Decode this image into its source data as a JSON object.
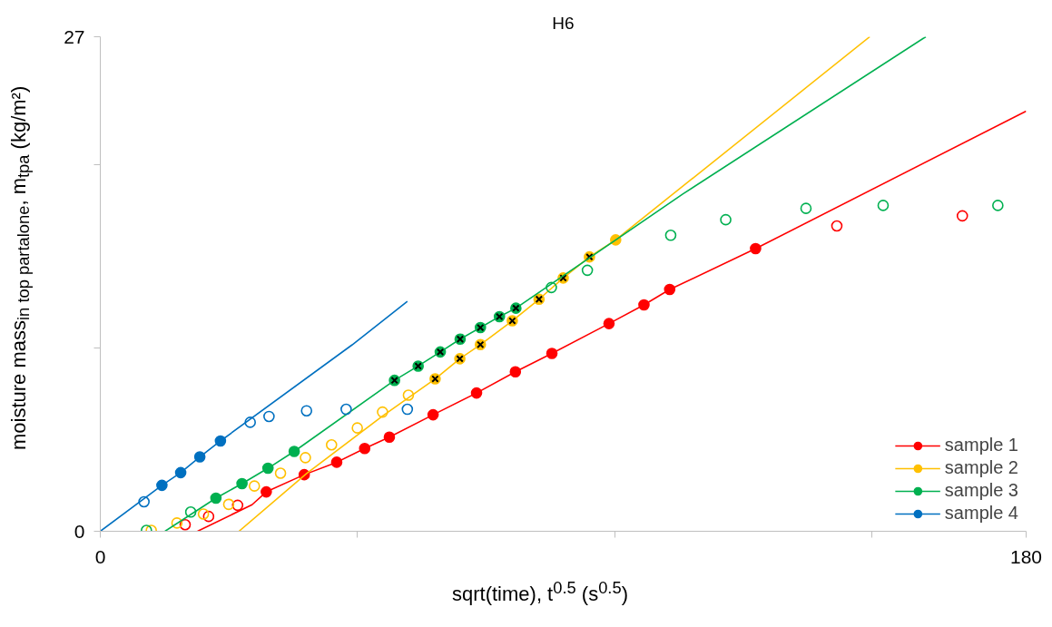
{
  "chart_data": {
    "type": "scatter",
    "title": "H6",
    "xlabel": "sqrt(time), t$^{0.5}$ (s$^{0.5}$)",
    "ylabel": "moisture mass$_{in top partalone}$, m$_{tpa}$ (kg/m²)",
    "xlim": [
      0,
      180
    ],
    "ylim": [
      0,
      27
    ],
    "xticks": [
      0,
      {
        "value": 50,
        "label": null
      },
      {
        "value": 100,
        "label": null
      },
      {
        "value": 150,
        "label": null
      },
      180
    ],
    "yticks": [
      0,
      {
        "value": 10,
        "label": null
      },
      {
        "value": 20,
        "label": null
      },
      27
    ],
    "grid": false,
    "legend": "bottom right",
    "series": [
      {
        "type": "line",
        "name": "sample 1",
        "color": "#ff0000",
        "marker": "circle",
        "x": [
          32.27,
          39.65,
          45.96,
          51.4,
          56.2,
          64.7,
          73.15,
          80.7,
          87.8,
          98.9,
          105.7,
          110.7,
          127.4
        ],
        "values": [
          2.15,
          3.09,
          3.77,
          4.52,
          5.14,
          6.36,
          7.55,
          8.71,
          9.71,
          11.34,
          12.36,
          13.2,
          15.43
        ]
      },
      {
        "type": "line",
        "color": "#ff0000",
        "x": [
          18.9,
          29.5,
          32.27
        ],
        "values": [
          0,
          1.45,
          2.15
        ]
      },
      {
        "type": "line",
        "color": "#ff0000",
        "x": [
          127.4,
          180
        ],
        "values": [
          15.43,
          22.94
        ]
      },
      {
        "color": "#ff0000",
        "marker": "circle",
        "x": [
          16.5,
          21.06,
          26.7,
          143.2,
          167.6
        ],
        "values": [
          0.36,
          0.81,
          1.42,
          16.67,
          17.22
        ]
      },
      {
        "type": "line",
        "name": "sample 2",
        "color": "#ffc000",
        "marker": "circle",
        "x": [
          65.1,
          69.9,
          73.9,
          80.1,
          85.3,
          90.0,
          95.1,
          100.2
        ],
        "values": [
          8.32,
          9.42,
          10.19,
          11.49,
          12.67,
          13.83,
          14.98,
          15.91
        ]
      },
      {
        "type": "line",
        "color": "#ffc000",
        "x": [
          26.96,
          40.1,
          54.9,
          65.1
        ],
        "values": [
          0,
          3.15,
          6.3,
          8.32
        ]
      },
      {
        "type": "line",
        "color": "#ffc000",
        "x": [
          100.2,
          149.6
        ],
        "values": [
          15.91,
          27
        ]
      },
      {
        "color": "#ffc000",
        "marker": "circle",
        "x": [
          9.91,
          14.9,
          20.05,
          24.96,
          29.96,
          35.04,
          39.88,
          44.96,
          49.97,
          54.87,
          59.9
        ],
        "values": [
          0.05,
          0.45,
          0.94,
          1.47,
          2.47,
          3.17,
          4.02,
          4.72,
          5.64,
          6.51,
          7.43
        ]
      },
      {
        "color": "#000000",
        "marker": "cross",
        "x": [
          65.1,
          69.9,
          73.9,
          80.1,
          85.3,
          90.0,
          95.1
        ],
        "values": [
          8.32,
          9.42,
          10.19,
          11.49,
          12.67,
          13.83,
          14.98
        ]
      },
      {
        "type": "line",
        "name": "sample 3",
        "color": "#00b050",
        "marker": "circle",
        "x": [
          22.48,
          27.55,
          32.6,
          37.7,
          57.2,
          61.8,
          66.1,
          69.96,
          73.9,
          77.6,
          80.8
        ],
        "values": [
          1.81,
          2.6,
          3.44,
          4.36,
          8.24,
          9.02,
          9.79,
          10.49,
          11.12,
          11.72,
          12.18
        ]
      },
      {
        "type": "line",
        "color": "#00b050",
        "x": [
          12.57,
          22.48
        ],
        "values": [
          0,
          1.81
        ]
      },
      {
        "type": "line",
        "color": "#00b050",
        "x": [
          80.8,
          113.3,
          160.5
        ],
        "values": [
          12.18,
          18.42,
          27
        ]
      },
      {
        "color": "#00b050",
        "marker": "circle",
        "x": [
          8.97,
          17.58,
          87.7,
          94.7,
          110.9,
          121.6,
          137.2,
          152.2,
          174.5
        ],
        "values": [
          0.05,
          1.05,
          13.31,
          14.25,
          16.16,
          17.01,
          17.63,
          17.79,
          17.79
        ]
      },
      {
        "color": "#000000",
        "marker": "cross",
        "x": [
          57.2,
          61.8,
          66.1,
          69.96,
          73.9,
          77.6,
          80.8
        ],
        "values": [
          8.24,
          9.02,
          9.79,
          10.49,
          11.12,
          11.72,
          12.18
        ]
      },
      {
        "type": "line",
        "name": "sample 4",
        "color": "#0070c0",
        "marker": "circle",
        "x": [
          11.98,
          15.63,
          19.35,
          23.36
        ],
        "values": [
          2.51,
          3.2,
          4.06,
          4.93
        ]
      },
      {
        "type": "line",
        "color": "#0070c0",
        "x": [
          0,
          11.98
        ],
        "values": [
          0,
          2.51
        ]
      },
      {
        "type": "line",
        "color": "#0070c0",
        "x": [
          23.36,
          48.97,
          59.7
        ],
        "values": [
          4.93,
          10.18,
          12.55
        ]
      },
      {
        "color": "#0070c0",
        "marker": "circle",
        "x": [
          8.5,
          29.15,
          32.8,
          40.1,
          47.8,
          59.7
        ],
        "values": [
          1.61,
          5.95,
          6.27,
          6.58,
          6.66,
          6.66
        ]
      }
    ]
  }
}
